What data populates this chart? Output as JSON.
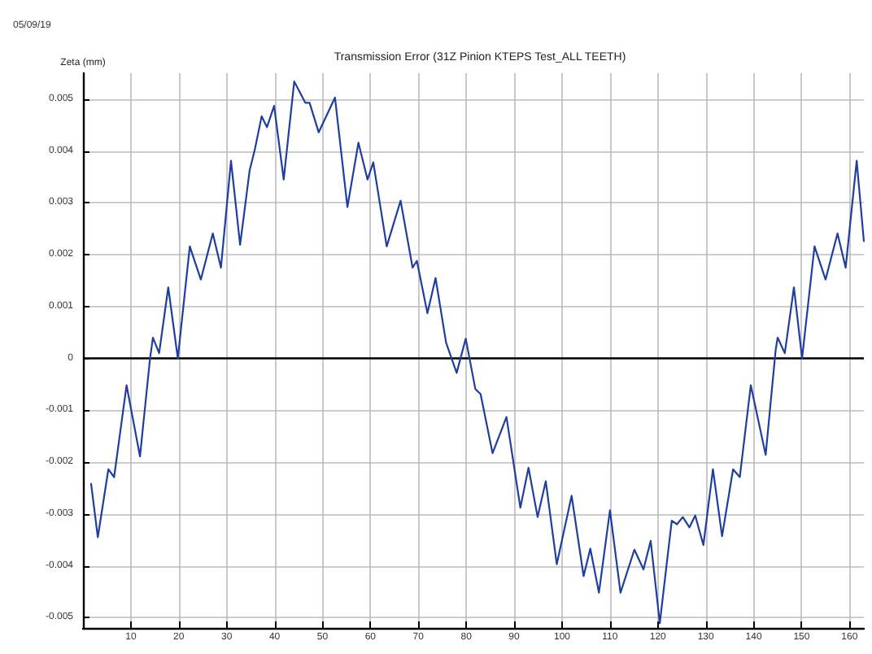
{
  "chart_data": {
    "type": "line",
    "title": "Transmission Error (31Z Pinion KTEPS Test_ALL TEETH)",
    "ylabel": "Zeta (mm)",
    "annotations": [
      "05/09/19"
    ],
    "series": [
      {
        "color": "#1f3f9f",
        "x": [
          1.7,
          3.1,
          5.3,
          6.5,
          9.1,
          11.9,
          14,
          14.6,
          15.9,
          17.8,
          19.8,
          22.3,
          24.6,
          27.1,
          28.8,
          30.9,
          32.8,
          34.8,
          35.9,
          37.3,
          38.4,
          39.9,
          41.9,
          44.1,
          46.4,
          47.3,
          49.2,
          52.6,
          55.2,
          57.5,
          59.4,
          60.6,
          63.4,
          66.3,
          68.8,
          69.7,
          71.9,
          73.6,
          75.8,
          78,
          79.9,
          81.9,
          83,
          85.5,
          88.4,
          91.3,
          93,
          94.9,
          96.6,
          98.9,
          102,
          104.5,
          105.9,
          107.7,
          110,
          112.2,
          115.1,
          117,
          118.5,
          120.4,
          122.9,
          124,
          125.2,
          126.6,
          127.8,
          129.5,
          131.5,
          133.4,
          135.7,
          137.1,
          139.4,
          142.5,
          144.6,
          145,
          146.5,
          148.4,
          150.1,
          152.7,
          155,
          157.5,
          159.2,
          161.5,
          163
        ],
        "values": [
          -0.00242,
          -0.00345,
          -0.00214,
          -0.00229,
          -0.00052,
          -0.00189,
          0,
          0.0004,
          0.0001,
          0.00137,
          0,
          0.00216,
          0.00152,
          0.00241,
          0.00175,
          0.00381,
          0.00219,
          0.00363,
          0.00404,
          0.00467,
          0.00446,
          0.00487,
          0.00345,
          0.00534,
          0.00493,
          0.00493,
          0.00436,
          0.00503,
          0.00292,
          0.00416,
          0.00345,
          0.00378,
          0.00216,
          0.00304,
          0.00175,
          0.00188,
          0.00087,
          0.00155,
          0.0003,
          -0.00028,
          0.00038,
          -0.00059,
          -0.00069,
          -0.00183,
          -0.00113,
          -0.00288,
          -0.00211,
          -0.00306,
          -0.00237,
          -0.00397,
          -0.00265,
          -0.0042,
          -0.00367,
          -0.00452,
          -0.00293,
          -0.00452,
          -0.00369,
          -0.00407,
          -0.00352,
          -0.00511,
          -0.00313,
          -0.0032,
          -0.00306,
          -0.00326,
          -0.00303,
          -0.0036,
          -0.00214,
          -0.00343,
          -0.00214,
          -0.00229,
          -0.00052,
          -0.00186,
          0.00017,
          0.0004,
          0.0001,
          0.00137,
          0,
          0.00216,
          0.00152,
          0.00241,
          0.00175,
          0.00381,
          0.00226
        ]
      }
    ],
    "xlim": [
      0,
      163
    ],
    "xticks": [
      10,
      20,
      30,
      40,
      50,
      60,
      70,
      80,
      90,
      100,
      110,
      120,
      130,
      140,
      150,
      160
    ],
    "ylim": [
      -0.0052,
      0.0055
    ],
    "yticks": [
      -0.005,
      -0.004,
      -0.003,
      -0.002,
      -0.001,
      0,
      0.001,
      0.002,
      0.003,
      0.004,
      0.005
    ],
    "ref_lines": [
      {
        "axis": "y",
        "value": 0,
        "color": "#000000"
      }
    ],
    "grid": true,
    "marker": "none",
    "line_style": "solid"
  }
}
